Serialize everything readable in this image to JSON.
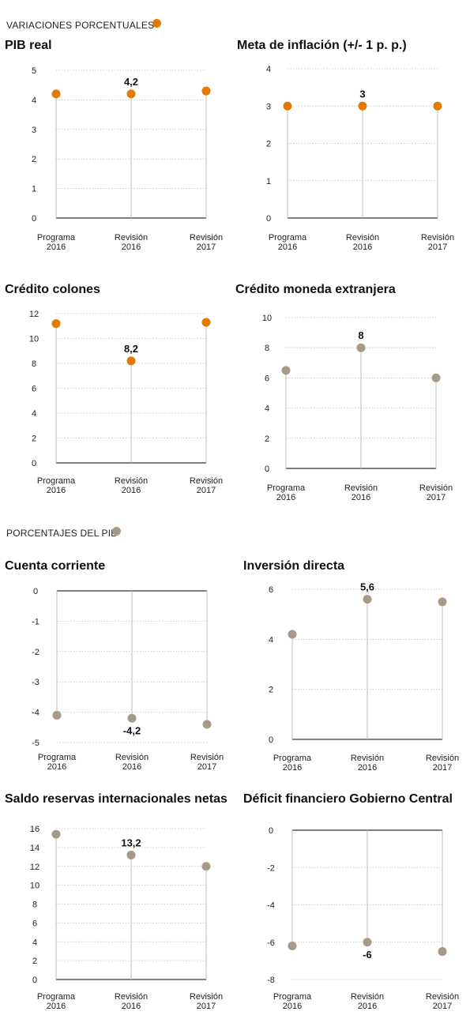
{
  "sections": {
    "variaciones": {
      "label": "VARIACIONES PORCENTUALES",
      "color": "#e07b00"
    },
    "pib": {
      "label": "PORCENTAJES DEL PIB",
      "color": "#a59a88"
    }
  },
  "colors": {
    "orange": "#e07b00",
    "taupe": "#a59a88",
    "grid": "#bdbdbd",
    "axis": "#333333"
  },
  "chart_data": [
    {
      "id": "pib-real",
      "type": "scatter",
      "title": "PIB real",
      "categories": [
        [
          "Programa",
          "2016"
        ],
        [
          "Revisión",
          "2016"
        ],
        [
          "Revisión",
          "2017"
        ]
      ],
      "values": [
        4.2,
        4.2,
        4.3
      ],
      "ylim": [
        0,
        5
      ],
      "yticks": [
        0,
        1,
        2,
        3,
        4,
        5
      ],
      "label_index": 1,
      "label_text": "4,2",
      "label_pos": "above",
      "grid": true,
      "color": "orange"
    },
    {
      "id": "meta-inflacion",
      "type": "scatter",
      "title": "Meta de inflación (+/- 1 p. p.)",
      "categories": [
        [
          "Programa",
          "2016"
        ],
        [
          "Revisión",
          "2016"
        ],
        [
          "Revisión",
          "2017"
        ]
      ],
      "values": [
        3,
        3,
        3
      ],
      "ylim": [
        0,
        4
      ],
      "yticks": [
        0,
        1,
        2,
        3,
        4
      ],
      "label_index": 1,
      "label_text": "3",
      "label_pos": "above",
      "grid": true,
      "color": "orange"
    },
    {
      "id": "credito-colones",
      "type": "scatter",
      "title": "Crédito colones",
      "categories": [
        [
          "Programa",
          "2016"
        ],
        [
          "Revisión",
          "2016"
        ],
        [
          "Revisión",
          "2017"
        ]
      ],
      "values": [
        11.2,
        8.2,
        11.3
      ],
      "ylim": [
        0,
        12
      ],
      "yticks": [
        0,
        2,
        4,
        6,
        8,
        10,
        12
      ],
      "label_index": 1,
      "label_text": "8,2",
      "label_pos": "above",
      "grid": true,
      "color": "orange"
    },
    {
      "id": "credito-me",
      "type": "scatter",
      "title": "Crédito moneda extranjera",
      "categories": [
        [
          "Programa",
          "2016"
        ],
        [
          "Revisión",
          "2016"
        ],
        [
          "Revisión",
          "2017"
        ]
      ],
      "values": [
        6.5,
        8,
        6
      ],
      "ylim": [
        0,
        10
      ],
      "yticks": [
        0,
        2,
        4,
        6,
        8,
        10
      ],
      "label_index": 1,
      "label_text": "8",
      "label_pos": "above",
      "grid": true,
      "color": "taupe"
    },
    {
      "id": "cuenta-corriente",
      "type": "scatter",
      "title": "Cuenta corriente",
      "categories": [
        [
          "Programa",
          "2016"
        ],
        [
          "Revisión",
          "2016"
        ],
        [
          "Revisión",
          "2017"
        ]
      ],
      "values": [
        -4.1,
        -4.2,
        -4.4
      ],
      "ylim": [
        -5,
        0
      ],
      "yticks": [
        0,
        -1,
        -2,
        -3,
        -4,
        -5
      ],
      "label_index": 1,
      "label_text": "-4,2",
      "label_pos": "below",
      "grid": true,
      "color": "taupe"
    },
    {
      "id": "inversion-directa",
      "type": "scatter",
      "title": "Inversión directa",
      "categories": [
        [
          "Programa",
          "2016"
        ],
        [
          "Revisión",
          "2016"
        ],
        [
          "Revisión",
          "2017"
        ]
      ],
      "values": [
        4.2,
        5.6,
        5.5
      ],
      "ylim": [
        0,
        6
      ],
      "yticks": [
        0,
        2,
        4,
        6
      ],
      "label_index": 1,
      "label_text": "5,6",
      "label_pos": "above",
      "grid": true,
      "color": "taupe"
    },
    {
      "id": "saldo-reservas",
      "type": "scatter",
      "title": "Saldo reservas internacionales netas",
      "categories": [
        [
          "Programa",
          "2016"
        ],
        [
          "Revisión",
          "2016"
        ],
        [
          "Revisión",
          "2017"
        ]
      ],
      "values": [
        15.4,
        13.2,
        12
      ],
      "ylim": [
        0,
        16
      ],
      "yticks": [
        0,
        2,
        4,
        6,
        8,
        10,
        12,
        14,
        16
      ],
      "label_index": 1,
      "label_text": "13,2",
      "label_pos": "above",
      "grid": true,
      "color": "taupe"
    },
    {
      "id": "deficit-financiero",
      "type": "scatter",
      "title": "Déficit financiero Gobierno Central",
      "categories": [
        [
          "Programa",
          "2016"
        ],
        [
          "Revisión",
          "2016"
        ],
        [
          "Revisión",
          "2017"
        ]
      ],
      "values": [
        -6.2,
        -6,
        -6.5
      ],
      "ylim": [
        -8,
        0
      ],
      "yticks": [
        0,
        -2,
        -4,
        -6,
        -8
      ],
      "label_index": 1,
      "label_text": "-6",
      "label_pos": "below",
      "grid": true,
      "color": "taupe"
    }
  ]
}
